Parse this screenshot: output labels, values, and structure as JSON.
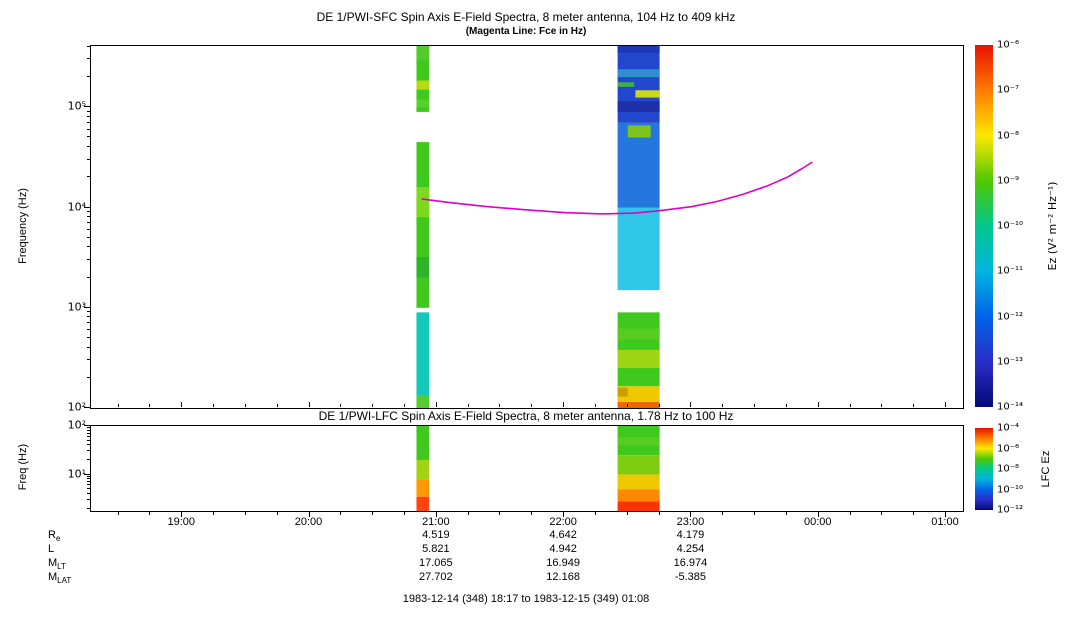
{
  "figure": {
    "caption": "1983-12-14 (348) 18:17 to 1983-12-15 (349) 01:08"
  },
  "chart_data": [
    {
      "type": "heatmap",
      "title": "DE 1/PWI-SFC  Spin Axis E-Field Spectra, 8 meter antenna, 104 Hz to 409 kHz",
      "subtitle": "(Magenta Line: Fce in Hz)",
      "ylabel": "Frequency (Hz)",
      "x_range_hours": [
        18.2833,
        25.1333
      ],
      "y_range_hz": [
        100,
        409000
      ],
      "grid": false,
      "y_ticks": [
        {
          "f": 100000,
          "label": "10⁵"
        },
        {
          "f": 10000,
          "label": "10⁴"
        },
        {
          "f": 1000,
          "label": "10³"
        },
        {
          "f": 100,
          "label": "10²"
        }
      ],
      "x_ticks": [
        {
          "hour": 19,
          "label": "19:00"
        },
        {
          "hour": 20,
          "label": "20:00"
        },
        {
          "hour": 21,
          "label": "21:00"
        },
        {
          "hour": 22,
          "label": "22:00"
        },
        {
          "hour": 23,
          "label": "23:00"
        },
        {
          "hour": 24,
          "label": "00:00"
        },
        {
          "hour": 25,
          "label": "01:00"
        }
      ],
      "colorbar": {
        "label": "Ez (V² m⁻² Hz⁻¹)",
        "ticks": [
          "10⁻⁶",
          "10⁻⁷",
          "10⁻⁸",
          "10⁻⁹",
          "10⁻¹⁰",
          "10⁻¹¹",
          "10⁻¹²",
          "10⁻¹³",
          "10⁻¹⁴"
        ],
        "gradient": [
          "#e81000",
          "#ff7a00",
          "#ffe800",
          "#50c800",
          "#00c88c",
          "#00b4e0",
          "#0064e8",
          "#2a2ec8",
          "#000a78"
        ]
      },
      "stripes": [
        {
          "t0": 20.84,
          "t1": 20.94,
          "segments": [
            {
              "f0": 100,
              "f1": 132,
              "color": "#55cc33"
            },
            {
              "f0": 132,
              "f1": 900,
              "color": "#12c9b8"
            },
            {
              "f0": 1000,
              "f1": 45000,
              "color": "#3fc81e"
            },
            {
              "f0": 2000,
              "f1": 3200,
              "color": "#2fb32a"
            },
            {
              "f0": 8000,
              "f1": 16000,
              "color": "#7ed81e"
            },
            {
              "f0": 90000,
              "f1": 409000,
              "color": "#3fc81e"
            },
            {
              "f0": 100000,
              "f1": 120000,
              "color": "#57d02a"
            },
            {
              "f0": 150000,
              "f1": 185000,
              "color": "#b5db10"
            },
            {
              "f0": 300000,
              "f1": 409000,
              "color": "#52cc29"
            }
          ]
        },
        {
          "t0": 22.42,
          "t1": 22.75,
          "segments": [
            {
              "f0": 100,
              "f1": 115,
              "color": "#ee6600"
            },
            {
              "f0": 115,
              "f1": 165,
              "color": "#f0c800"
            },
            {
              "f0": 165,
              "f1": 900,
              "color": "#3fc81e"
            },
            {
              "f0": 250,
              "f1": 380,
              "color": "#9ed414"
            },
            {
              "f0": 480,
              "f1": 620,
              "color": "#57cc22"
            },
            {
              "f0": 130,
              "f1": 160,
              "color": "#c8a000",
              "t0": 22.42,
              "t1": 22.5
            },
            {
              "f0": 1500,
              "f1": 10000,
              "color": "#2fc6e8"
            },
            {
              "f0": 10000,
              "f1": 70000,
              "color": "#2577dd"
            },
            {
              "f0": 70000,
              "f1": 409000,
              "color": "#2247cc"
            },
            {
              "f0": 350000,
              "f1": 409000,
              "color": "#1e35b5"
            },
            {
              "f0": 90000,
              "f1": 115000,
              "color": "#1e2fa8"
            },
            {
              "f0": 50000,
              "f1": 66000,
              "color": "#7fc41e",
              "t0": 22.5,
              "t1": 22.68
            },
            {
              "f0": 125000,
              "f1": 148000,
              "color": "#c8d81a",
              "t0": 22.56,
              "t1": 22.75
            },
            {
              "f0": 200000,
              "f1": 240000,
              "color": "#2f8fd0"
            },
            {
              "f0": 160000,
              "f1": 178000,
              "color": "#3fb040",
              "t0": 22.42,
              "t1": 22.55
            }
          ]
        }
      ],
      "fce_line": {
        "color": "#dd00cc",
        "points": [
          [
            20.88,
            12200
          ],
          [
            21.1,
            11200
          ],
          [
            21.4,
            10200
          ],
          [
            21.7,
            9500
          ],
          [
            22.0,
            8900
          ],
          [
            22.3,
            8650
          ],
          [
            22.55,
            8800
          ],
          [
            22.75,
            9300
          ],
          [
            23.0,
            10200
          ],
          [
            23.2,
            11500
          ],
          [
            23.4,
            13500
          ],
          [
            23.6,
            16500
          ],
          [
            23.75,
            20000
          ],
          [
            23.87,
            24500
          ],
          [
            23.95,
            28500
          ]
        ]
      }
    },
    {
      "type": "heatmap",
      "title": "DE 1/PWI-LFC  Spin Axis E-Field Spectra, 8 meter antenna, 1.78 Hz to 100 Hz",
      "ylabel": "Freq (Hz)",
      "x_range_hours": [
        18.2833,
        25.1333
      ],
      "y_range_hz": [
        1.78,
        100
      ],
      "grid": false,
      "y_ticks": [
        {
          "f": 100,
          "label": "10²"
        },
        {
          "f": 10,
          "label": "10¹"
        }
      ],
      "x_ticks": [
        {
          "hour": 19,
          "label": "19:00"
        },
        {
          "hour": 20,
          "label": "20:00"
        },
        {
          "hour": 21,
          "label": "21:00"
        },
        {
          "hour": 22,
          "label": "22:00"
        },
        {
          "hour": 23,
          "label": "23:00"
        },
        {
          "hour": 24,
          "label": "00:00"
        },
        {
          "hour": 25,
          "label": "01:00"
        }
      ],
      "colorbar": {
        "label": "LFC Ez",
        "ticks": [
          "10⁻⁴",
          "10⁻⁶",
          "10⁻⁸",
          "10⁻¹⁰",
          "10⁻¹²"
        ],
        "gradient": [
          "#e81000",
          "#ff7a00",
          "#ffe800",
          "#50c800",
          "#00c88c",
          "#00b4e0",
          "#0064e8",
          "#2a2ec8",
          "#000a78"
        ]
      },
      "stripes": [
        {
          "t0": 20.84,
          "t1": 20.94,
          "segments": [
            {
              "f0": 20,
              "f1": 100,
              "color": "#3fc81e"
            },
            {
              "f0": 8,
              "f1": 20,
              "color": "#9ed414"
            },
            {
              "f0": 3.5,
              "f1": 8,
              "color": "#ff9900"
            },
            {
              "f0": 1.78,
              "f1": 3.5,
              "color": "#ff4411"
            }
          ]
        },
        {
          "t0": 22.42,
          "t1": 22.75,
          "segments": [
            {
              "f0": 25,
              "f1": 100,
              "color": "#3fc81e"
            },
            {
              "f0": 40,
              "f1": 60,
              "color": "#57cc22"
            },
            {
              "f0": 10,
              "f1": 25,
              "color": "#7ecc11"
            },
            {
              "f0": 5,
              "f1": 10,
              "color": "#f0c800"
            },
            {
              "f0": 2.8,
              "f1": 5,
              "color": "#ff8800"
            },
            {
              "f0": 1.78,
              "f1": 2.8,
              "color": "#ff3300"
            }
          ]
        }
      ]
    }
  ],
  "ephemeris": {
    "tick_hours": [
      21,
      22,
      23
    ],
    "rows": [
      {
        "label": "R",
        "sub": "e",
        "values": [
          "4.519",
          "4.642",
          "4.179"
        ]
      },
      {
        "label": "L",
        "sub": "",
        "values": [
          "5.821",
          "4.942",
          "4.254"
        ]
      },
      {
        "label": "M",
        "sub": "LT",
        "values": [
          "17.065",
          "16.949",
          "16.974"
        ]
      },
      {
        "label": "M",
        "sub": "LAT",
        "values": [
          "27.702",
          "12.168",
          "-5.385"
        ]
      }
    ]
  }
}
